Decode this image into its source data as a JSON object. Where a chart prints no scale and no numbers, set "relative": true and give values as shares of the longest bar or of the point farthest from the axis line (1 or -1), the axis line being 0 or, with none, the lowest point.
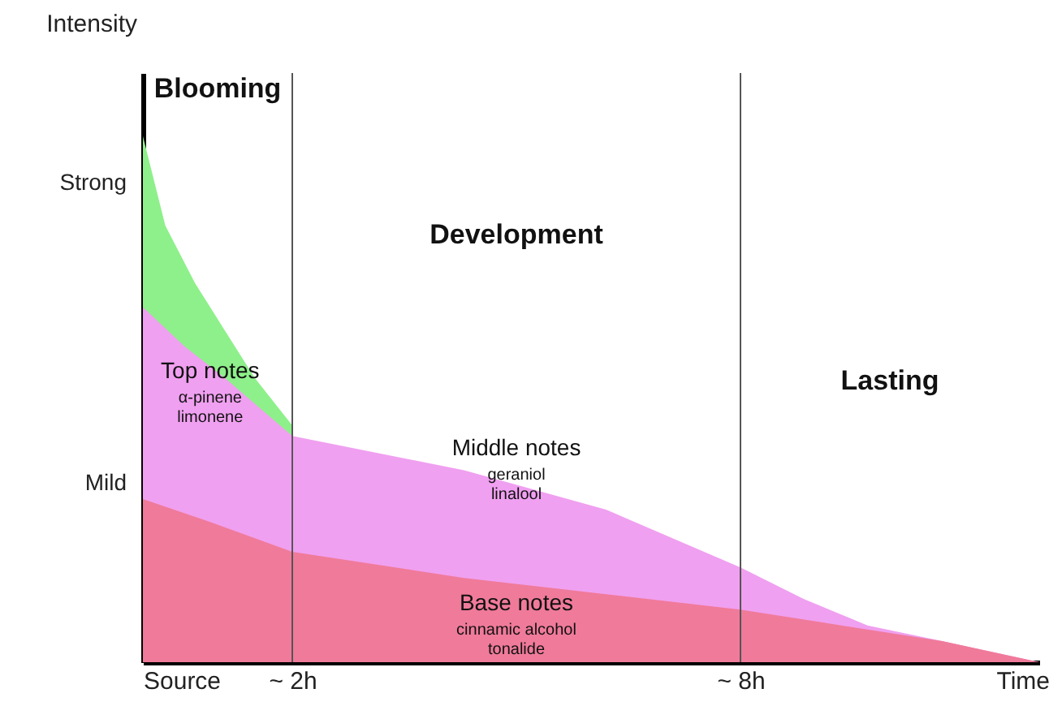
{
  "chart_data": {
    "type": "area",
    "relative": true,
    "ylabel": "Intensity",
    "xlabel": "Time",
    "xlim": [
      0,
      12
    ],
    "xticks": [
      {
        "value": 0,
        "label": "Source"
      },
      {
        "value": 2,
        "label": "~ 2h"
      },
      {
        "value": 8,
        "label": "~ 8h"
      }
    ],
    "grid": false,
    "series": [
      {
        "name": "Top notes",
        "color": "#8ef08a",
        "x": [
          0,
          0.3,
          0.7,
          1.1,
          1.5,
          2
        ],
        "values": [
          1.0,
          0.83,
          0.72,
          0.63,
          0.54,
          0.45
        ]
      },
      {
        "name": "Middle notes",
        "color": "#f0a0f0",
        "x": [
          0,
          0.56,
          1.1,
          2,
          4.3,
          6.2,
          8,
          8.85,
          9.7,
          10.7,
          12
        ],
        "values": [
          0.675,
          0.6,
          0.54,
          0.43,
          0.365,
          0.29,
          0.18,
          0.12,
          0.07,
          0.04,
          0
        ]
      },
      {
        "name": "Base notes",
        "color": "#f07a9a",
        "x": [
          0,
          0.83,
          2,
          4.3,
          8,
          9.35,
          10.7,
          12
        ],
        "values": [
          0.31,
          0.27,
          0.21,
          0.16,
          0.1,
          0.07,
          0.04,
          0
        ]
      }
    ],
    "ref_lines": [
      {
        "axis": "x",
        "value": 2,
        "color": "#555555"
      },
      {
        "axis": "x",
        "value": 8,
        "color": "#555555"
      }
    ],
    "annotations": [
      "Blooming",
      "Development",
      "Lasting",
      "Strong",
      "Mild",
      "α-pinene",
      "limonene",
      "geraniol",
      "linalool",
      "cinnamic alcohol",
      "tonalide"
    ]
  }
}
